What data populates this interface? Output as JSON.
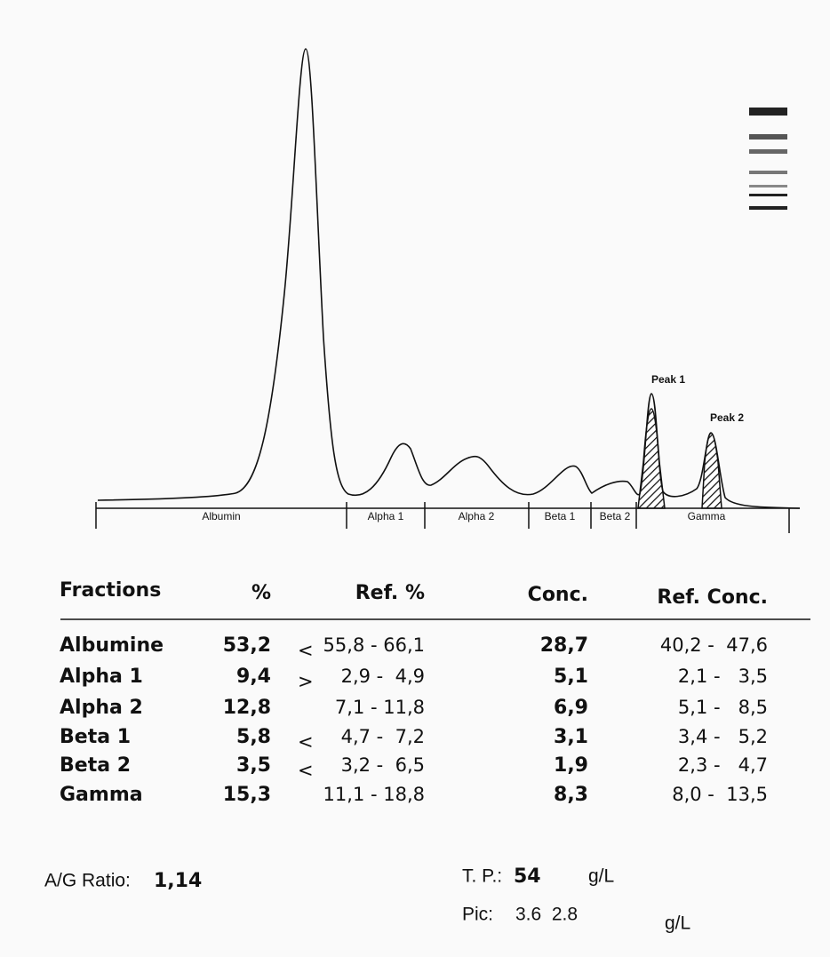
{
  "electropherogram": {
    "fraction_labels": [
      "Albumin",
      "Alpha 1",
      "Alpha 2",
      "Beta 1",
      "Beta 2",
      "Gamma"
    ],
    "peak_labels": [
      "Peak 1",
      "Peak 2"
    ]
  },
  "table": {
    "headers": [
      "Fractions",
      "%",
      "Ref. %",
      "Conc.",
      "Ref. Conc."
    ],
    "rows": [
      {
        "fraction": "Albumine",
        "percent": "53,2",
        "flag": "<",
        "ref_percent": "55,8 - 66,1",
        "conc": "28,7",
        "ref_conc": "40,2 -  47,6"
      },
      {
        "fraction": "Alpha 1",
        "percent": "9,4",
        "flag": ">",
        "ref_percent": "2,9 -  4,9",
        "conc": "5,1",
        "ref_conc": "2,1 -   3,5"
      },
      {
        "fraction": "Alpha 2",
        "percent": "12,8",
        "ref_percent": "7,1 - 11,8",
        "conc": "6,9",
        "ref_conc": "5,1 -   8,5"
      },
      {
        "fraction": "Beta 1",
        "percent": "5,8",
        "flag": "<",
        "ref_percent": "4,7 -  7,2",
        "conc": "3,1",
        "ref_conc": "3,4 -   5,2"
      },
      {
        "fraction": "Beta 2",
        "percent": "3,5",
        "flag": "<",
        "ref_percent": "3,2 -  6,5",
        "conc": "1,9",
        "ref_conc": "2,3 -   4,7"
      },
      {
        "fraction": "Gamma",
        "percent": "15,3",
        "ref_percent": "11,1 - 18,8",
        "conc": "8,3",
        "ref_conc": "8,0 -  13,5"
      }
    ]
  },
  "summary": {
    "ag_ratio_label": "A/G Ratio:",
    "ag_ratio": "1,14",
    "tp_label": "T. P.:",
    "tp": "54",
    "tp_unit": "g/L",
    "pic_label": "Pic:",
    "pic": "3.6  2.8",
    "pic_unit": "g/L"
  }
}
